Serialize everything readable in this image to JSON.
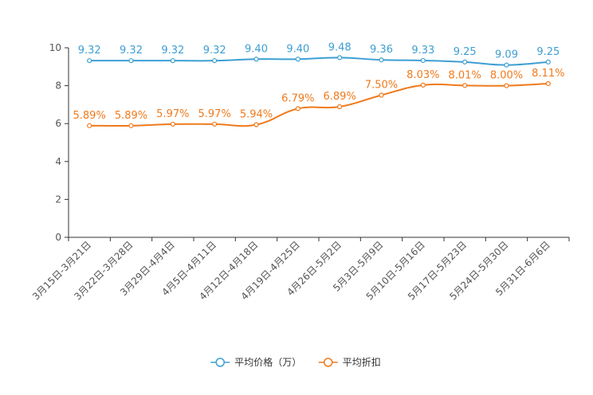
{
  "chart_data": {
    "type": "line",
    "title": "",
    "xlabel": "",
    "ylabel": "",
    "ylim": [
      0,
      10
    ],
    "yticks": [
      0,
      2,
      4,
      6,
      8,
      10
    ],
    "grid": false,
    "legend_position": "bottom-center",
    "categories": [
      "3月15日-3月21日",
      "3月22日-3月28日",
      "3月29日-4月4日",
      "4月5日-4月11日",
      "4月12日-4月18日",
      "4月19日-4月25日",
      "4月26日-5月2日",
      "5月3日-5月9日",
      "5月10日-5月16日",
      "5月17日-5月23日",
      "5月24日-5月30日",
      "5月31日-6月6日"
    ],
    "series": [
      {
        "name": "平均价格（万）",
        "color": "#3d9fd4",
        "values": [
          9.32,
          9.32,
          9.32,
          9.32,
          9.4,
          9.4,
          9.48,
          9.36,
          9.33,
          9.25,
          9.09,
          9.25
        ],
        "labels": [
          "9.32",
          "9.32",
          "9.32",
          "9.32",
          "9.40",
          "9.40",
          "9.48",
          "9.36",
          "9.33",
          "9.25",
          "9.09",
          "9.25"
        ]
      },
      {
        "name": "平均折扣",
        "color": "#f07a1c",
        "values": [
          5.89,
          5.89,
          5.97,
          5.97,
          5.94,
          6.79,
          6.89,
          7.5,
          8.03,
          8.01,
          8.0,
          8.11
        ],
        "labels": [
          "5.89%",
          "5.89%",
          "5.97%",
          "5.97%",
          "5.94%",
          "6.79%",
          "6.89%",
          "7.50%",
          "8.03%",
          "8.01%",
          "8.00%",
          "8.11%"
        ]
      }
    ]
  }
}
